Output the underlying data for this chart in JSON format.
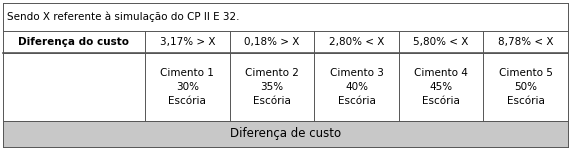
{
  "title": "Diferença de custo",
  "col_headers": [
    "Cimento 1\n30%\nEscória",
    "Cimento 2\n35%\nEscória",
    "Cimento 3\n40%\nEscória",
    "Cimento 4\n45%\nEscória",
    "Cimento 5\n50%\nEscória"
  ],
  "row_label": "Diferença do custo",
  "row_values": [
    "3,17% > X",
    "0,18% > X",
    "2,80% < X",
    "5,80% < X",
    "8,78% < X"
  ],
  "footnote": "Sendo X referente à simulação do CP II E 32.",
  "bg_color": "#ffffff",
  "header_bg": "#c8c8c8",
  "border_color": "#555555",
  "text_color": "#000000",
  "font_size": 7.5,
  "title_font_size": 8.5,
  "row_label_font_size": 7.5
}
